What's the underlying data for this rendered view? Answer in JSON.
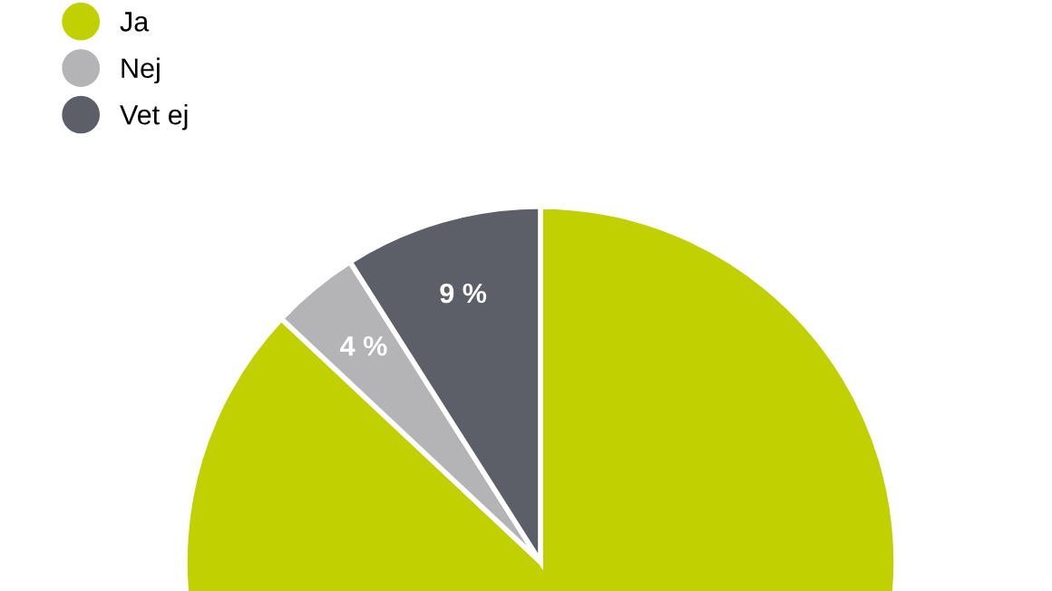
{
  "chart_data": {
    "type": "pie",
    "categories": [
      "Ja",
      "Nej",
      "Vet ej"
    ],
    "values": [
      87,
      4,
      9
    ],
    "colors": [
      "#c0d000",
      "#b4b4b6",
      "#5c5f68"
    ],
    "value_labels": [
      null,
      "4 %",
      "9 %"
    ],
    "legend": "top left"
  }
}
